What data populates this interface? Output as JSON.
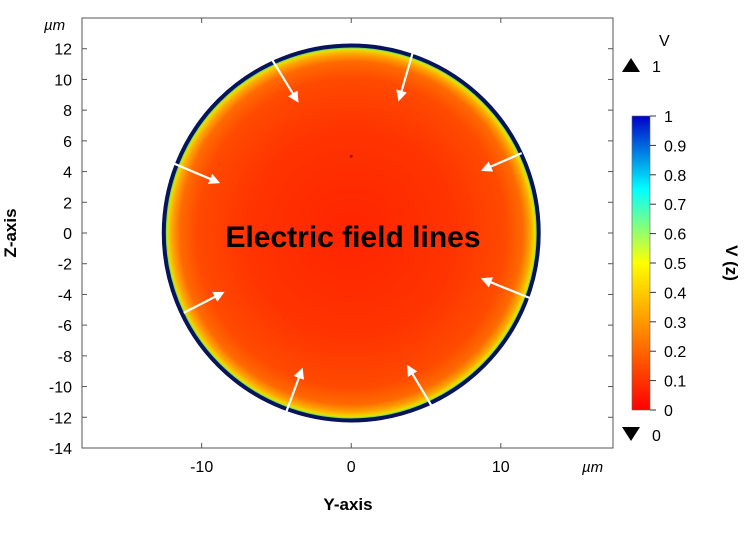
{
  "chart_data": {
    "type": "heatmap",
    "plot_type": "surface-potential-map",
    "xlabel": "Y-axis",
    "ylabel": "Z-axis",
    "x_unit": "µm",
    "y_unit": "µm",
    "xlim": [
      -18,
      17.5
    ],
    "ylim": [
      -14,
      14
    ],
    "x_ticks": [
      "-10",
      "0",
      "10"
    ],
    "y_ticks": [
      "12",
      "10",
      "8",
      "6",
      "4",
      "2",
      "0",
      "-2",
      "-4",
      "-6",
      "-8",
      "-10",
      "-12",
      "-14"
    ],
    "x_tick_values": [
      -10,
      0,
      10
    ],
    "y_tick_values": [
      12,
      10,
      8,
      6,
      4,
      2,
      0,
      -2,
      -4,
      -6,
      -8,
      -10,
      -12,
      -14
    ],
    "annotation": "Electric field lines",
    "domain": {
      "shape": "circle",
      "center": [
        0,
        0
      ],
      "radius": 12.6
    },
    "colorbar": {
      "label": "V (z)",
      "unit": "V",
      "min": 0,
      "max": 1,
      "max_marker": "1",
      "min_marker": "0",
      "ticks": [
        "1",
        "0.9",
        "0.8",
        "0.7",
        "0.6",
        "0.5",
        "0.4",
        "0.3",
        "0.2",
        "0.1",
        "0"
      ],
      "tick_values": [
        1,
        0.9,
        0.8,
        0.7,
        0.6,
        0.5,
        0.4,
        0.3,
        0.2,
        0.1,
        0
      ],
      "colormap": [
        "#ff0000",
        "#ff7f00",
        "#ffff00",
        "#00ffff",
        "#0000c8"
      ]
    },
    "field_arrows": [
      {
        "from": [
          -5.3,
          11.3
        ],
        "to": [
          -3.6,
          8.6
        ]
      },
      {
        "from": [
          4.1,
          11.7
        ],
        "to": [
          3.2,
          8.7
        ]
      },
      {
        "from": [
          -11.8,
          4.5
        ],
        "to": [
          -8.9,
          3.3
        ]
      },
      {
        "from": [
          11.4,
          5.2
        ],
        "to": [
          8.8,
          4.1
        ]
      },
      {
        "from": [
          -11.2,
          -5.2
        ],
        "to": [
          -8.6,
          -3.9
        ]
      },
      {
        "from": [
          12.1,
          -4.3
        ],
        "to": [
          8.8,
          -3.0
        ]
      },
      {
        "from": [
          -4.4,
          -11.8
        ],
        "to": [
          -3.3,
          -8.9
        ]
      },
      {
        "from": [
          5.4,
          -11.3
        ],
        "to": [
          3.8,
          -8.7
        ]
      }
    ],
    "grid": false,
    "legend": "colorbar-right"
  }
}
